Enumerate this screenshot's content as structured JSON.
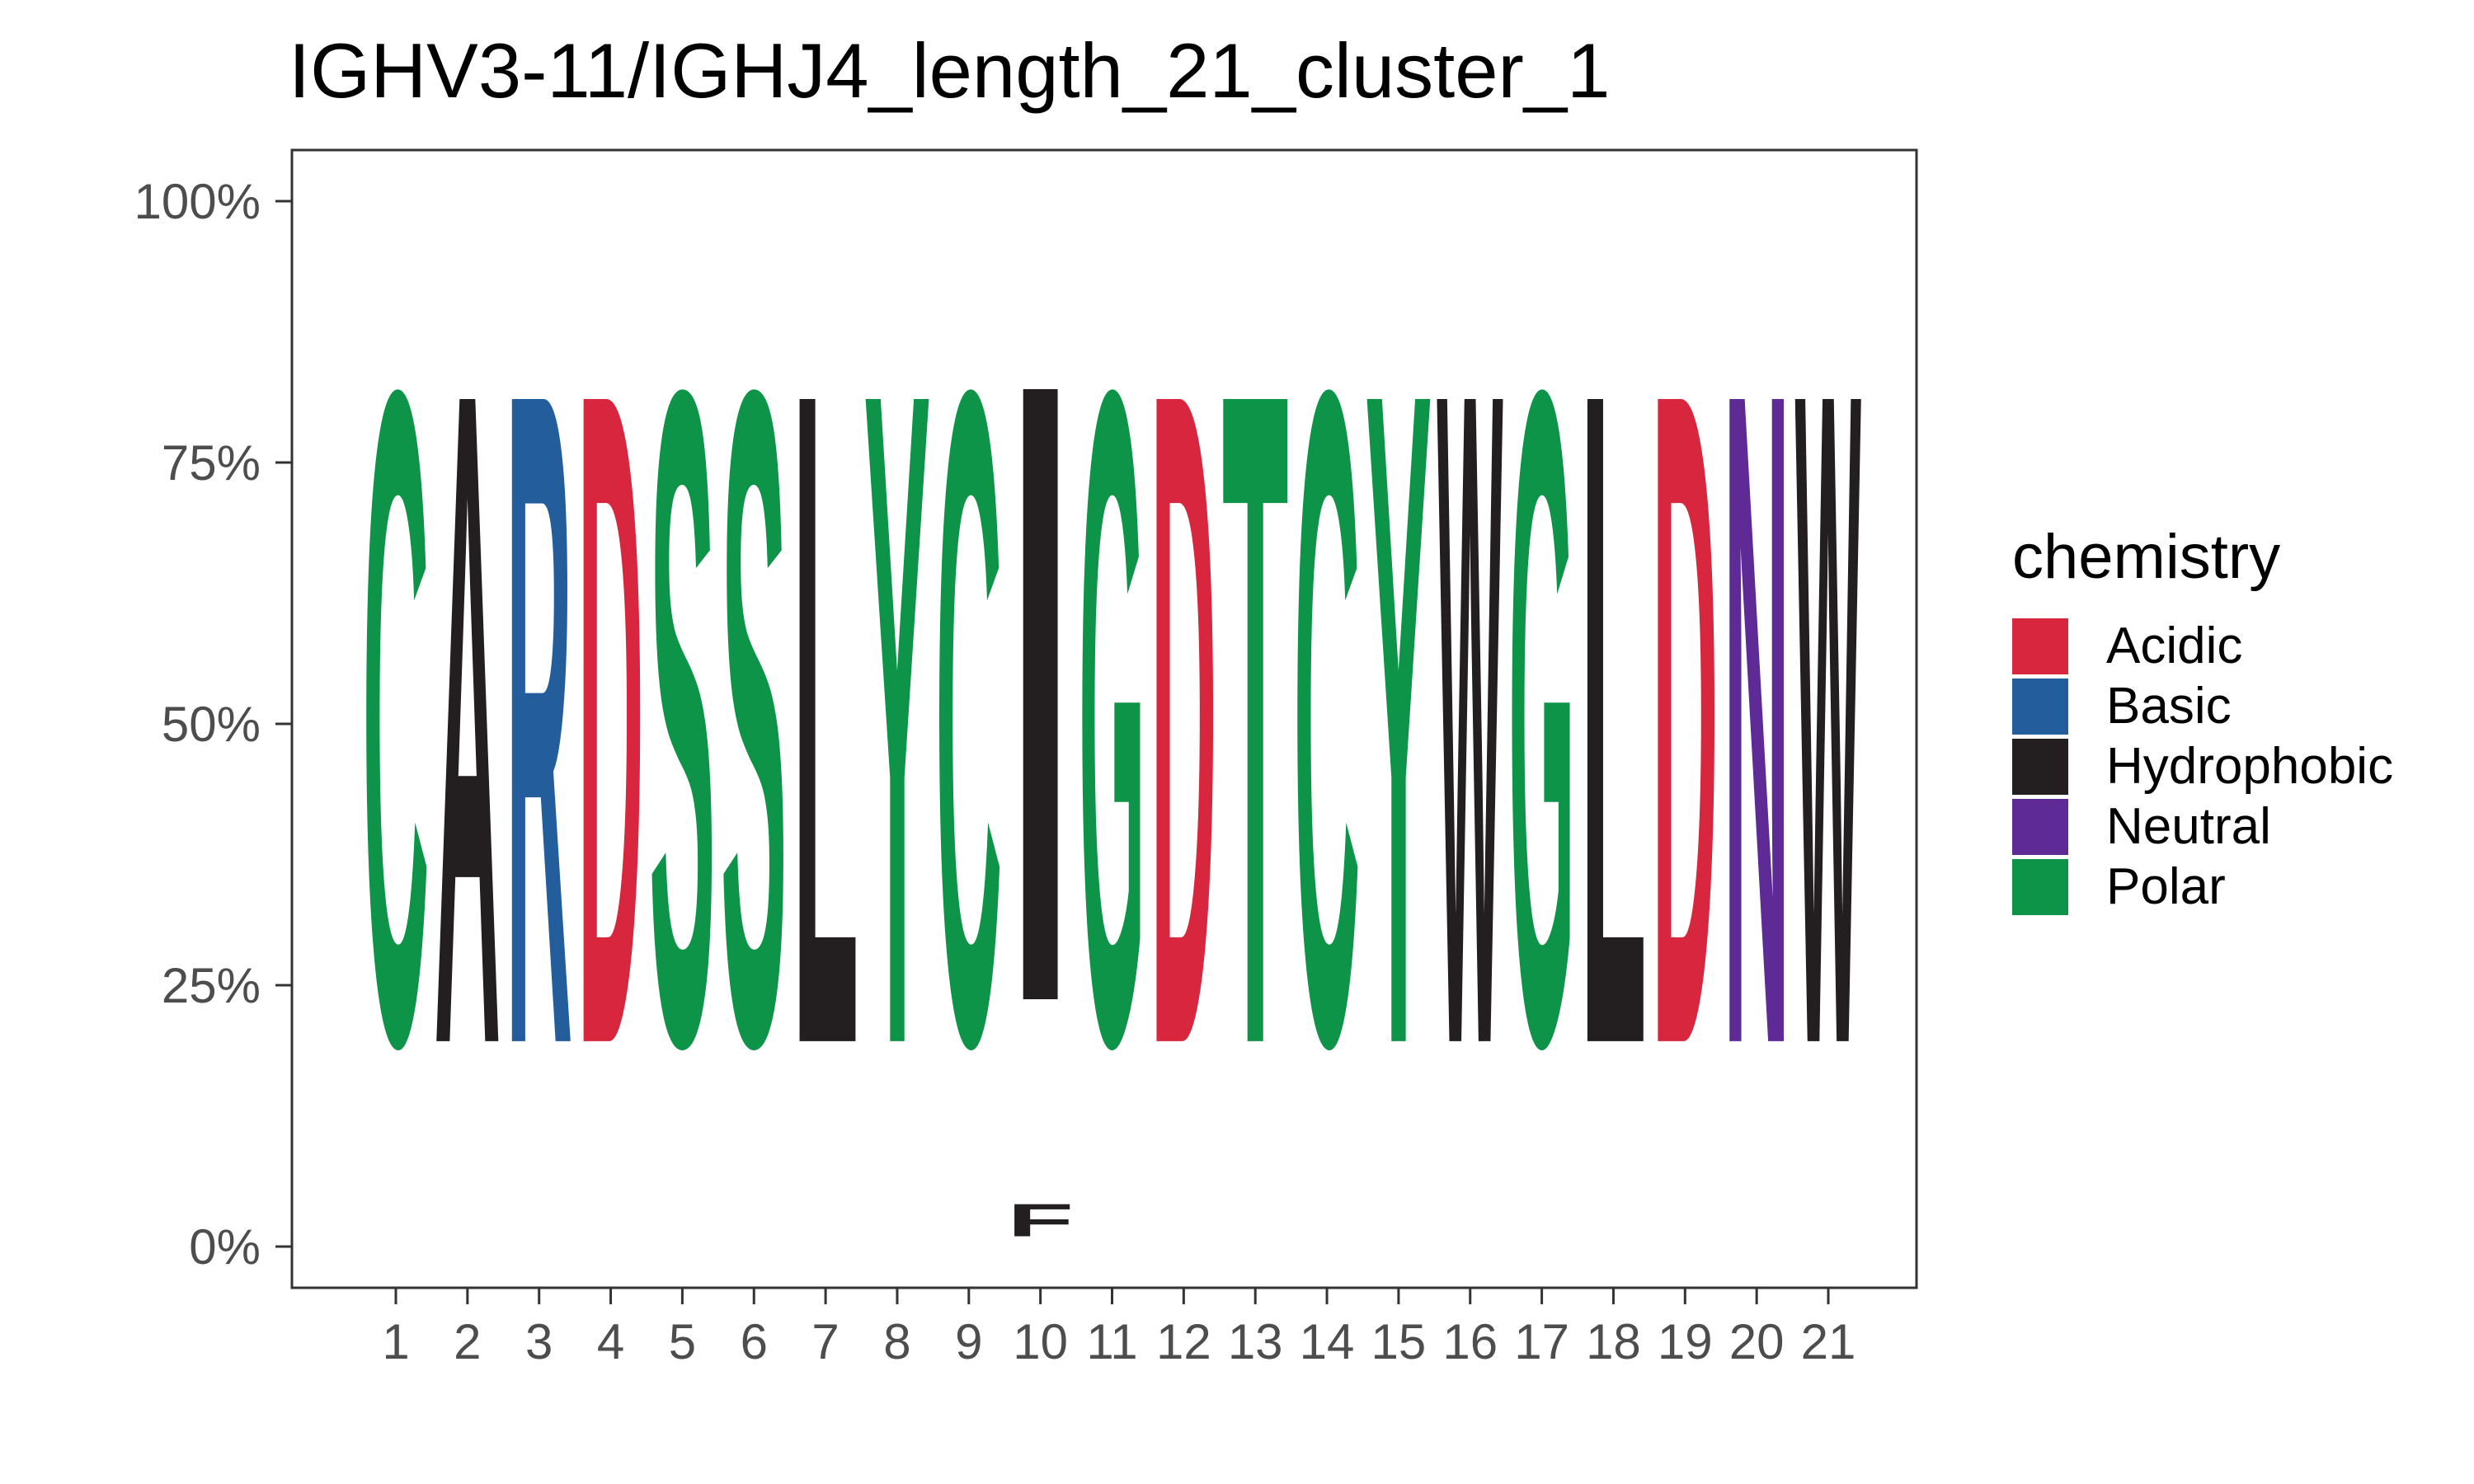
{
  "chart_data": {
    "type": "sequence-logo",
    "title": "IGHV3-11/IGHJ4_length_21_cluster_1",
    "ylabel": "",
    "xlabel": "",
    "ylim": [
      0,
      1
    ],
    "y_ticks": [
      {
        "value": 0,
        "label": "0%"
      },
      {
        "value": 0.25,
        "label": "25%"
      },
      {
        "value": 0.5,
        "label": "50%"
      },
      {
        "value": 0.75,
        "label": "75%"
      },
      {
        "value": 1,
        "label": "100%"
      }
    ],
    "positions": [
      "1",
      "2",
      "3",
      "4",
      "5",
      "6",
      "7",
      "8",
      "9",
      "10",
      "11",
      "12",
      "13",
      "14",
      "15",
      "16",
      "17",
      "18",
      "19",
      "20",
      "21"
    ],
    "legend": {
      "title": "chemistry",
      "placement": "right",
      "entries": [
        {
          "label": "Acidic",
          "color": "#D7263D"
        },
        {
          "label": "Basic",
          "color": "#245D9C"
        },
        {
          "label": "Hydrophobic",
          "color": "#231F20"
        },
        {
          "label": "Neutral",
          "color": "#5E2A96"
        },
        {
          "label": "Polar",
          "color": "#0E9448"
        }
      ]
    },
    "stacks": [
      [
        {
          "aa": "C",
          "chem": "Polar",
          "freq": 1.0
        }
      ],
      [
        {
          "aa": "A",
          "chem": "Hydrophobic",
          "freq": 1.0
        }
      ],
      [
        {
          "aa": "R",
          "chem": "Basic",
          "freq": 1.0
        }
      ],
      [
        {
          "aa": "D",
          "chem": "Acidic",
          "freq": 1.0
        }
      ],
      [
        {
          "aa": "S",
          "chem": "Polar",
          "freq": 1.0
        }
      ],
      [
        {
          "aa": "S",
          "chem": "Polar",
          "freq": 1.0
        }
      ],
      [
        {
          "aa": "L",
          "chem": "Hydrophobic",
          "freq": 1.0
        }
      ],
      [
        {
          "aa": "Y",
          "chem": "Polar",
          "freq": 1.0
        }
      ],
      [
        {
          "aa": "C",
          "chem": "Polar",
          "freq": 1.0
        }
      ],
      [
        {
          "aa": "F",
          "chem": "Hydrophobic",
          "freq": 0.05
        },
        {
          "aa": "I",
          "chem": "Hydrophobic",
          "freq": 0.95
        }
      ],
      [
        {
          "aa": "G",
          "chem": "Polar",
          "freq": 1.0
        }
      ],
      [
        {
          "aa": "D",
          "chem": "Acidic",
          "freq": 1.0
        }
      ],
      [
        {
          "aa": "T",
          "chem": "Polar",
          "freq": 1.0
        }
      ],
      [
        {
          "aa": "C",
          "chem": "Polar",
          "freq": 1.0
        }
      ],
      [
        {
          "aa": "Y",
          "chem": "Polar",
          "freq": 1.0
        }
      ],
      [
        {
          "aa": "W",
          "chem": "Hydrophobic",
          "freq": 1.0
        }
      ],
      [
        {
          "aa": "G",
          "chem": "Polar",
          "freq": 1.0
        }
      ],
      [
        {
          "aa": "L",
          "chem": "Hydrophobic",
          "freq": 1.0
        }
      ],
      [
        {
          "aa": "D",
          "chem": "Acidic",
          "freq": 1.0
        }
      ],
      [
        {
          "aa": "N",
          "chem": "Neutral",
          "freq": 1.0
        }
      ],
      [
        {
          "aa": "W",
          "chem": "Hydrophobic",
          "freq": 1.0
        }
      ]
    ]
  }
}
